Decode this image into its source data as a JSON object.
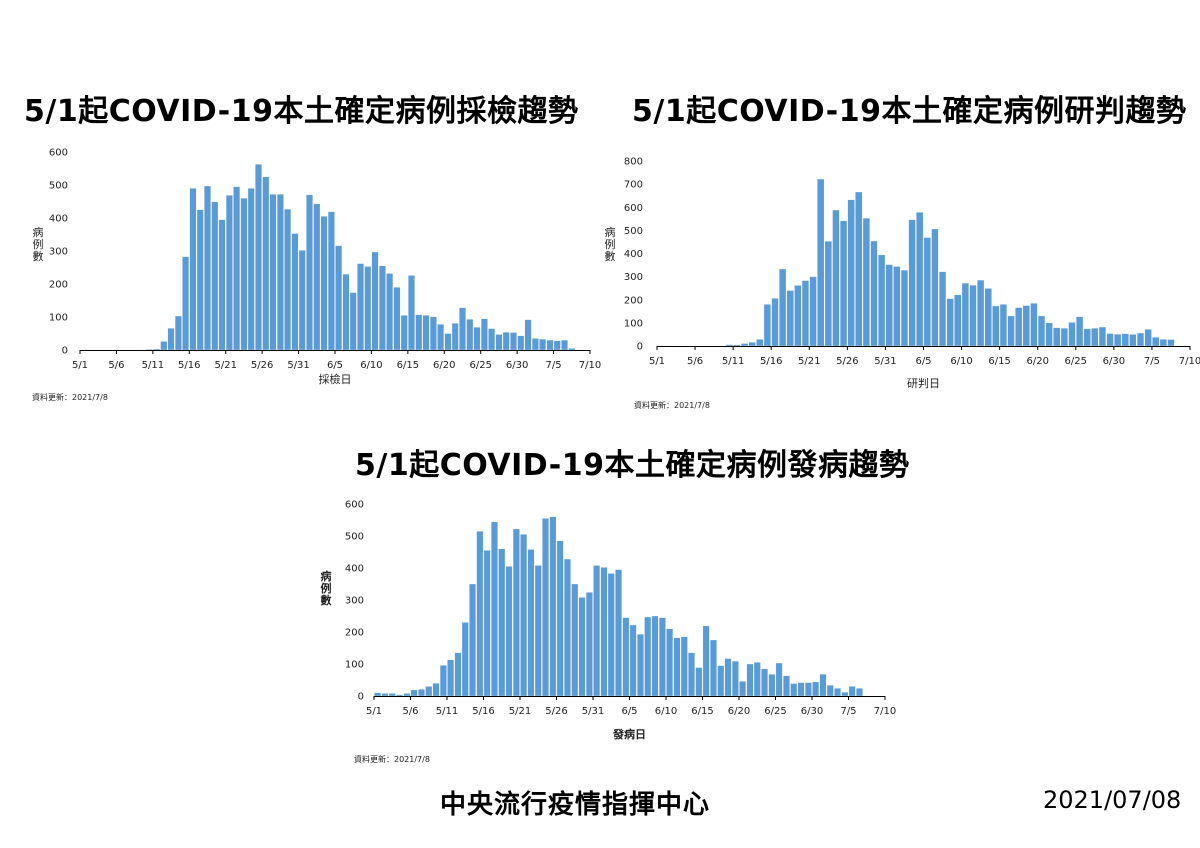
{
  "footer": {
    "agency": "中央流行疫情指揮中心",
    "date": "2021/07/08"
  },
  "chart_data": [
    {
      "type": "bar",
      "title": "5/1起COVID-19本土確定病例採檢趨勢",
      "xlabel": "採檢日",
      "ylabel": [
        "病",
        "例",
        "數"
      ],
      "update_note": "資料更新：2021/7/8",
      "ylim": [
        0,
        600
      ],
      "yticks": [
        0,
        100,
        200,
        300,
        400,
        500,
        600
      ],
      "xtick_labels": [
        "5/1",
        "5/6",
        "5/11",
        "5/16",
        "5/21",
        "5/26",
        "5/31",
        "6/5",
        "6/10",
        "6/15",
        "6/20",
        "6/25",
        "6/30",
        "7/5",
        "7/10"
      ],
      "categories": [
        "5/1",
        "5/2",
        "5/3",
        "5/4",
        "5/5",
        "5/6",
        "5/7",
        "5/8",
        "5/9",
        "5/10",
        "5/11",
        "5/12",
        "5/13",
        "5/14",
        "5/15",
        "5/16",
        "5/17",
        "5/18",
        "5/19",
        "5/20",
        "5/21",
        "5/22",
        "5/23",
        "5/24",
        "5/25",
        "5/26",
        "5/27",
        "5/28",
        "5/29",
        "5/30",
        "5/31",
        "6/1",
        "6/2",
        "6/3",
        "6/4",
        "6/5",
        "6/6",
        "6/7",
        "6/8",
        "6/9",
        "6/10",
        "6/11",
        "6/12",
        "6/13",
        "6/14",
        "6/15",
        "6/16",
        "6/17",
        "6/18",
        "6/19",
        "6/20",
        "6/21",
        "6/22",
        "6/23",
        "6/24",
        "6/25",
        "6/26",
        "6/27",
        "6/28",
        "6/29",
        "6/30",
        "7/1",
        "7/2",
        "7/3",
        "7/4",
        "7/5",
        "7/6",
        "7/7"
      ],
      "values": [
        0,
        0,
        0,
        0,
        0,
        0,
        0,
        0,
        1,
        2,
        3,
        26,
        66,
        103,
        283,
        490,
        425,
        497,
        449,
        395,
        469,
        495,
        460,
        490,
        563,
        525,
        472,
        472,
        427,
        353,
        302,
        470,
        443,
        405,
        419,
        316,
        230,
        174,
        262,
        253,
        297,
        255,
        232,
        190,
        105,
        226,
        107,
        105,
        101,
        78,
        50,
        81,
        128,
        93,
        69,
        95,
        65,
        47,
        54,
        53,
        43,
        92,
        35,
        33,
        30,
        28,
        30,
        5
      ]
    },
    {
      "type": "bar",
      "title": "5/1起COVID-19本土確定病例研判趨勢",
      "xlabel": "研判日",
      "ylabel": [
        "病",
        "例",
        "數"
      ],
      "update_note": "資料更新：2021/7/8",
      "ylim": [
        0,
        800
      ],
      "yticks": [
        0,
        100,
        200,
        300,
        400,
        500,
        600,
        700,
        800
      ],
      "xtick_labels": [
        "5/1",
        "5/6",
        "5/11",
        "5/16",
        "5/21",
        "5/26",
        "5/31",
        "6/5",
        "6/10",
        "6/15",
        "6/20",
        "6/25",
        "6/30",
        "7/5",
        "7/10"
      ],
      "categories": [
        "5/1",
        "5/2",
        "5/3",
        "5/4",
        "5/5",
        "5/6",
        "5/7",
        "5/8",
        "5/9",
        "5/10",
        "5/11",
        "5/12",
        "5/13",
        "5/14",
        "5/15",
        "5/16",
        "5/17",
        "5/18",
        "5/19",
        "5/20",
        "5/21",
        "5/22",
        "5/23",
        "5/24",
        "5/25",
        "5/26",
        "5/27",
        "5/28",
        "5/29",
        "5/30",
        "5/31",
        "6/1",
        "6/2",
        "6/3",
        "6/4",
        "6/5",
        "6/6",
        "6/7",
        "6/8",
        "6/9",
        "6/10",
        "6/11",
        "6/12",
        "6/13",
        "6/14",
        "6/15",
        "6/16",
        "6/17",
        "6/18",
        "6/19",
        "6/20",
        "6/21",
        "6/22",
        "6/23",
        "6/24",
        "6/25",
        "6/26",
        "6/27",
        "6/28",
        "6/29",
        "6/30",
        "7/1",
        "7/2",
        "7/3",
        "7/4",
        "7/5",
        "7/6",
        "7/7"
      ],
      "values": [
        2,
        1,
        0,
        0,
        0,
        0,
        0,
        0,
        0,
        6,
        5,
        11,
        16,
        29,
        180,
        206,
        333,
        240,
        262,
        283,
        300,
        722,
        453,
        588,
        541,
        632,
        666,
        553,
        454,
        394,
        352,
        344,
        328,
        546,
        578,
        469,
        506,
        321,
        205,
        221,
        272,
        263,
        285,
        249,
        173,
        180,
        130,
        166,
        175,
        185,
        130,
        100,
        79,
        77,
        102,
        127,
        75,
        77,
        82,
        54,
        51,
        53,
        50,
        56,
        72,
        38,
        29,
        28
      ]
    },
    {
      "type": "bar",
      "title": "5/1起COVID-19本土確定病例發病趨勢",
      "xlabel": "發病日",
      "ylabel": [
        "病",
        "例",
        "數"
      ],
      "update_note": "資料更新：2021/7/8",
      "ylim": [
        0,
        600
      ],
      "yticks": [
        0,
        100,
        200,
        300,
        400,
        500,
        600
      ],
      "xtick_labels": [
        "5/1",
        "5/6",
        "5/11",
        "5/16",
        "5/21",
        "5/26",
        "5/31",
        "6/5",
        "6/10",
        "6/15",
        "6/20",
        "6/25",
        "6/30",
        "7/5",
        "7/10"
      ],
      "categories": [
        "5/1",
        "5/2",
        "5/3",
        "5/4",
        "5/5",
        "5/6",
        "5/7",
        "5/8",
        "5/9",
        "5/10",
        "5/11",
        "5/12",
        "5/13",
        "5/14",
        "5/15",
        "5/16",
        "5/17",
        "5/18",
        "5/19",
        "5/20",
        "5/21",
        "5/22",
        "5/23",
        "5/24",
        "5/25",
        "5/26",
        "5/27",
        "5/28",
        "5/29",
        "5/30",
        "5/31",
        "6/1",
        "6/2",
        "6/3",
        "6/4",
        "6/5",
        "6/6",
        "6/7",
        "6/8",
        "6/9",
        "6/10",
        "6/11",
        "6/12",
        "6/13",
        "6/14",
        "6/15",
        "6/16",
        "6/17",
        "6/18",
        "6/19",
        "6/20",
        "6/21",
        "6/22",
        "6/23",
        "6/24",
        "6/25",
        "6/26",
        "6/27",
        "6/28",
        "6/29",
        "6/30",
        "7/1",
        "7/2",
        "7/3",
        "7/4",
        "7/5",
        "7/6"
      ],
      "values": [
        10,
        8,
        8,
        4,
        8,
        19,
        21,
        30,
        40,
        96,
        113,
        135,
        230,
        350,
        515,
        455,
        544,
        460,
        405,
        522,
        505,
        458,
        408,
        555,
        560,
        485,
        428,
        350,
        308,
        324,
        408,
        402,
        383,
        395,
        245,
        222,
        193,
        247,
        250,
        245,
        210,
        182,
        185,
        135,
        89,
        219,
        175,
        95,
        117,
        109,
        46,
        100,
        105,
        85,
        68,
        103,
        63,
        39,
        42,
        42,
        44,
        68,
        34,
        24,
        12,
        30,
        24
      ]
    }
  ],
  "colors": {
    "bar": "#5b9bd5",
    "bar_edge": "#ffffff",
    "axis": "#000000"
  }
}
